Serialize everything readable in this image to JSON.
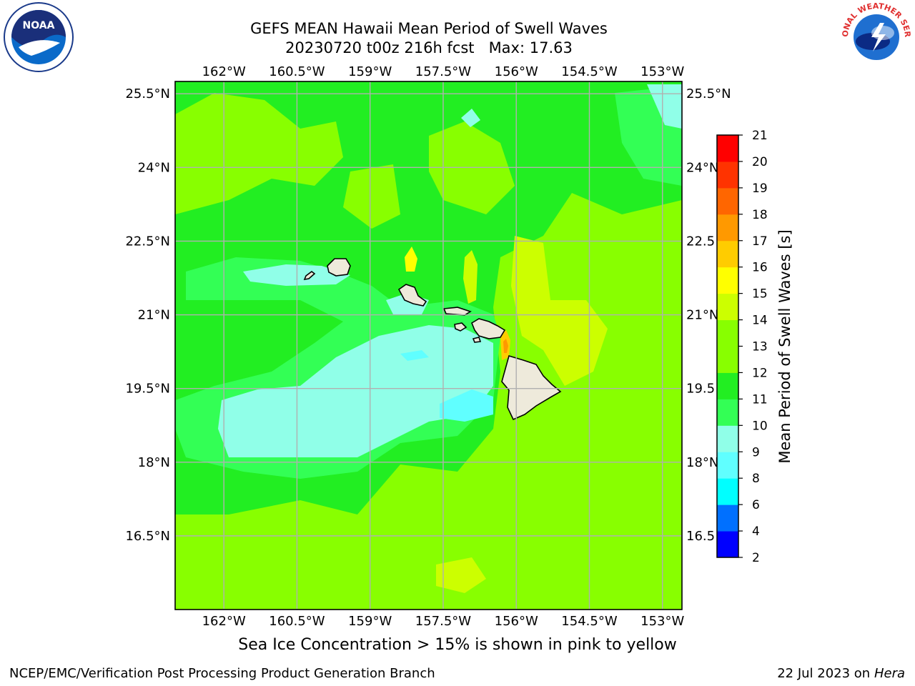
{
  "title": {
    "line1": "GEFS MEAN Hawaii Mean Period of Swell Waves",
    "line2": "20230720 t00z 216h fcst   Max: 17.63"
  },
  "logos": {
    "left": "noaa-logo",
    "left_text": "NOAA",
    "right": "nws-logo",
    "right_text": "NATIONAL WEATHER SERVICE"
  },
  "map": {
    "lon_ticks": [
      "162°W",
      "160.5°W",
      "159°W",
      "157.5°W",
      "156°W",
      "154.5°W",
      "153°W"
    ],
    "lon_values": [
      -162,
      -160.5,
      -159,
      -157.5,
      -156,
      -154.5,
      -153
    ],
    "lat_ticks": [
      "25.5°N",
      "24°N",
      "22.5°N",
      "21°N",
      "19.5°N",
      "18°N",
      "16.5°N"
    ],
    "lat_ticks_right": [
      "25.5°N",
      "24°N",
      "22.5",
      "21°N",
      "19.5",
      "18°N",
      "16.5"
    ],
    "lat_values": [
      25.5,
      24,
      22.5,
      21,
      19.5,
      18,
      16.5
    ],
    "extent": {
      "lon": [
        -163,
        -152.6
      ],
      "lat": [
        15,
        25.75
      ]
    },
    "islands": [
      "Kauai",
      "Niihau",
      "Oahu",
      "Molokai",
      "Lanai",
      "Maui",
      "Kahoolawe",
      "Hawaii"
    ],
    "colors": {
      "land": "#eeeadb",
      "grid": "#b0b0b0",
      "coast": "#000000"
    }
  },
  "colorbar": {
    "label": "Mean Period of Swell Waves [s]",
    "ticks": [
      "2",
      "4",
      "6",
      "8",
      "9",
      "10",
      "11",
      "12",
      "13",
      "14",
      "15",
      "16",
      "17",
      "18",
      "19",
      "20",
      "21"
    ],
    "colors": [
      "#0000ff",
      "#0070ff",
      "#00ffff",
      "#60ffff",
      "#90ffe8",
      "#33ff55",
      "#22ee22",
      "#88ff00",
      "#ccff00",
      "#ffff00",
      "#ffcc00",
      "#ff9900",
      "#ff6600",
      "#ff3300",
      "#ff0000"
    ]
  },
  "caption": "Sea Ice Concentration > 15% is shown in pink to yellow",
  "footer": {
    "left": "NCEP/EMC/Verification Post Processing Product Generation Branch",
    "right_date": "22 Jul 2023 on ",
    "right_host": "Hera"
  }
}
